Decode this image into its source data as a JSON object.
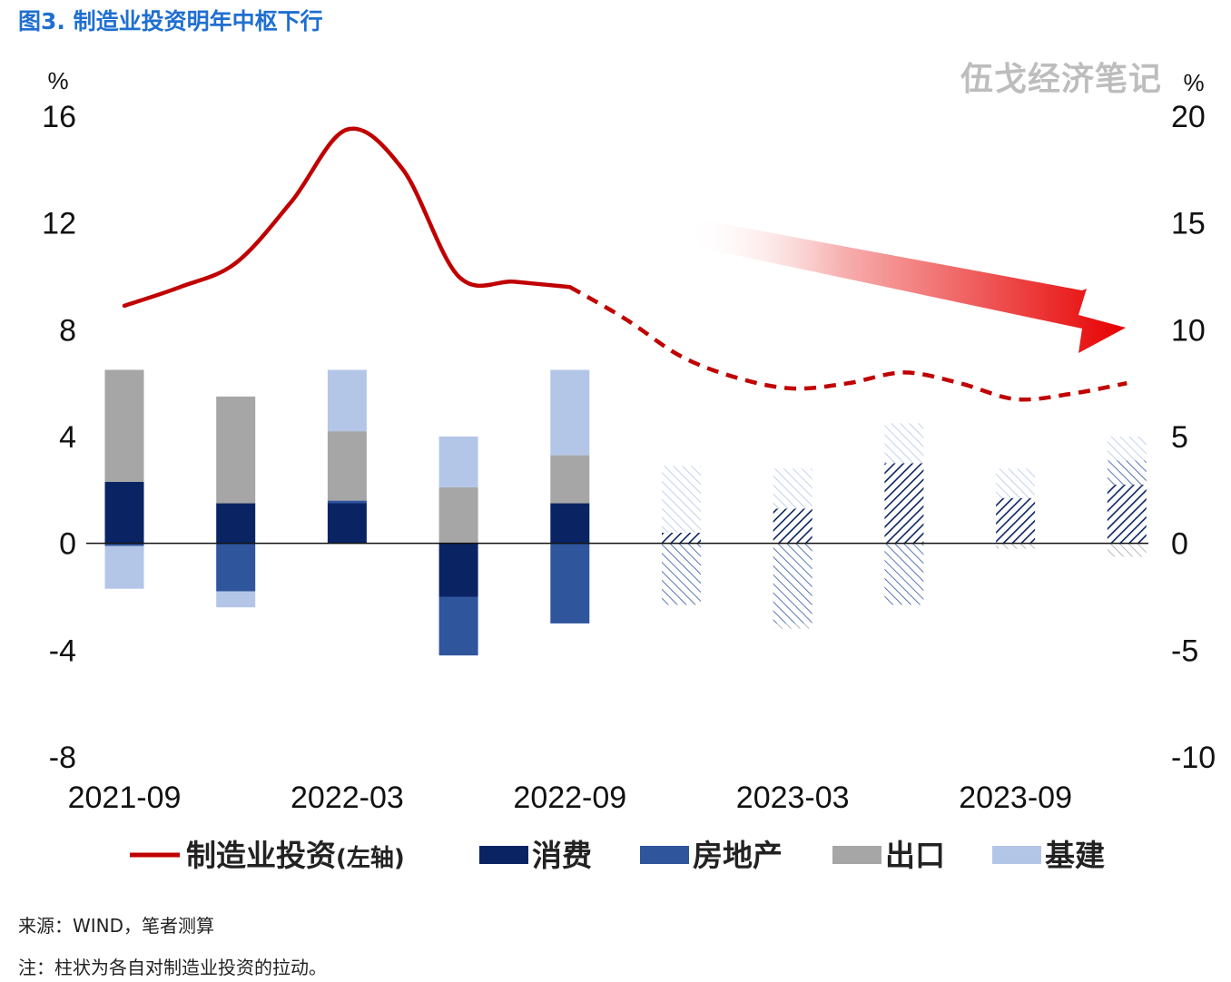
{
  "title": "图3. 制造业投资明年中枢下行",
  "watermark": "伍戈经济笔记",
  "source_note": "来源：WIND，笔者测算",
  "footnote": "注：柱状为各自对制造业投资的拉动。",
  "colors": {
    "line": "#c00000",
    "consumption": "#0a2463",
    "real_estate": "#2f559d",
    "export": "#a6a6a6",
    "infrastructure": "#b4c6e7",
    "title": "#1f6fd1",
    "arrow": "#e60000"
  },
  "chart_data": {
    "type": "bar+line",
    "left_axis": {
      "unit": "%",
      "range": [
        -8,
        16
      ],
      "ticks": [
        "16",
        "12",
        "8",
        "4",
        "0",
        "-4",
        "-8"
      ],
      "tick_values": [
        16,
        12,
        8,
        4,
        0,
        -4,
        -8
      ]
    },
    "right_axis": {
      "unit": "%",
      "range": [
        -10,
        20
      ],
      "ticks": [
        "20",
        "15",
        "10",
        "5",
        "0",
        "-5",
        "-10"
      ],
      "tick_values": [
        20,
        15,
        10,
        5,
        0,
        -5,
        -10
      ]
    },
    "x_tick_labels": [
      "2021-09",
      "2022-03",
      "2022-09",
      "2023-03",
      "2023-09"
    ],
    "x_tick_positions": [
      0,
      2,
      4,
      6,
      8
    ],
    "categories": [
      "2021-09",
      "2021-12",
      "2022-03",
      "2022-06",
      "2022-09",
      "2022-12",
      "2023-03",
      "2023-06",
      "2023-09",
      "2023-12"
    ],
    "forecast_from_index": 5,
    "series": [
      {
        "key": "consumption",
        "name": "消费",
        "values": [
          2.3,
          1.5,
          1.5,
          -2.0,
          1.5,
          0.4,
          1.3,
          3.0,
          1.7,
          2.2
        ]
      },
      {
        "key": "real_estate",
        "name": "房地产",
        "values": [
          -0.1,
          -1.8,
          0.1,
          -2.2,
          -3.0,
          -2.3,
          -3.0,
          -2.3,
          0.0,
          0.9
        ]
      },
      {
        "key": "export",
        "name": "出口",
        "values": [
          4.2,
          4.0,
          2.6,
          2.1,
          1.8,
          0.0,
          -0.2,
          0.0,
          -0.2,
          -0.5
        ]
      },
      {
        "key": "infrastructure",
        "name": "基建",
        "values": [
          -1.6,
          -0.6,
          2.3,
          1.9,
          3.2,
          2.5,
          1.5,
          1.5,
          1.1,
          0.9
        ]
      }
    ],
    "line": {
      "name": "制造业投资",
      "axis_label": "(左轴)",
      "x": [
        0,
        0.5,
        1,
        1.5,
        2,
        2.5,
        3,
        3.5,
        4,
        4.5,
        5,
        5.5,
        6,
        6.5,
        7,
        7.5,
        8,
        8.5,
        9
      ],
      "y": [
        8.9,
        9.6,
        10.5,
        12.8,
        15.5,
        14.0,
        10.0,
        9.8,
        9.6,
        8.4,
        7.0,
        6.2,
        5.8,
        6.0,
        6.4,
        6.0,
        5.4,
        5.6,
        6.0
      ],
      "dashed_from_x": 4
    },
    "legend": [
      "制造业投资(左轴)",
      "消费",
      "房地产",
      "出口",
      "基建"
    ]
  }
}
